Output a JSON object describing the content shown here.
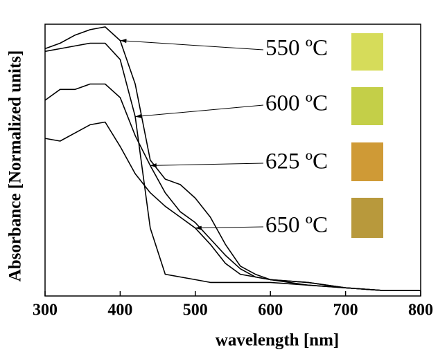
{
  "chart_data": {
    "type": "line",
    "x_label": "wavelength [nm]",
    "y_label": "Absorbance [Normalized units]",
    "x": [
      300,
      320,
      340,
      360,
      380,
      400,
      420,
      440,
      460,
      480,
      500,
      520,
      540,
      560,
      580,
      600,
      650,
      700,
      750,
      800
    ],
    "series": [
      {
        "name": "550 ºC",
        "color": "#000000",
        "values": [
          0.91,
          0.93,
          0.96,
          0.98,
          0.99,
          0.94,
          0.78,
          0.5,
          0.43,
          0.41,
          0.36,
          0.29,
          0.19,
          0.11,
          0.08,
          0.06,
          0.04,
          0.03,
          0.02,
          0.02
        ]
      },
      {
        "name": "600 ºC",
        "color": "#000000",
        "values": [
          0.9,
          0.91,
          0.92,
          0.93,
          0.93,
          0.87,
          0.66,
          0.25,
          0.08,
          0.07,
          0.06,
          0.05,
          0.05,
          0.05,
          0.05,
          0.05,
          0.04,
          0.03,
          0.02,
          0.02
        ]
      },
      {
        "name": "625 ºC",
        "color": "#000000",
        "values": [
          0.72,
          0.76,
          0.76,
          0.78,
          0.78,
          0.73,
          0.59,
          0.48,
          0.38,
          0.31,
          0.27,
          0.21,
          0.15,
          0.1,
          0.07,
          0.06,
          0.05,
          0.03,
          0.02,
          0.02
        ]
      },
      {
        "name": "650 ºC",
        "color": "#000000",
        "values": [
          0.58,
          0.57,
          0.6,
          0.63,
          0.64,
          0.55,
          0.45,
          0.38,
          0.33,
          0.29,
          0.25,
          0.19,
          0.12,
          0.08,
          0.07,
          0.06,
          0.05,
          0.03,
          0.02,
          0.02
        ]
      }
    ],
    "xlim": [
      300,
      800
    ],
    "xticks": [
      300,
      400,
      500,
      600,
      700,
      800
    ],
    "ylim": [
      0,
      1
    ],
    "grid": false
  }
}
